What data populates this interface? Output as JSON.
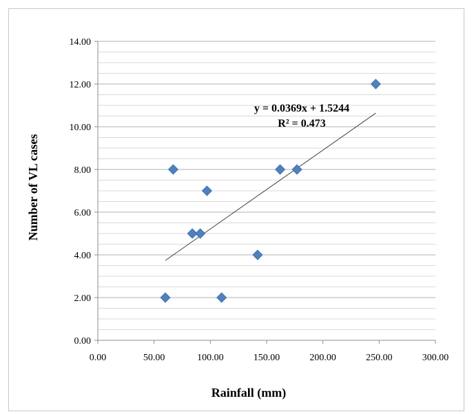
{
  "chart_data": {
    "type": "scatter",
    "xlabel": "Rainfall (mm)",
    "ylabel": "Number of VL cases",
    "xlim": [
      0,
      300
    ],
    "ylim": [
      0,
      14
    ],
    "x_ticks": [
      "0.00",
      "50.00",
      "100.00",
      "150.00",
      "200.00",
      "250.00",
      "300.00"
    ],
    "y_ticks": [
      "0.00",
      "2.00",
      "4.00",
      "6.00",
      "8.00",
      "10.00",
      "12.00",
      "14.00"
    ],
    "grid": true,
    "marker_color": "#4f81bd",
    "trendline_color": "#404040",
    "points": [
      {
        "x": 60,
        "y": 2
      },
      {
        "x": 67,
        "y": 8
      },
      {
        "x": 84,
        "y": 5
      },
      {
        "x": 91,
        "y": 5
      },
      {
        "x": 97,
        "y": 7
      },
      {
        "x": 110,
        "y": 2
      },
      {
        "x": 142,
        "y": 4
      },
      {
        "x": 162,
        "y": 8
      },
      {
        "x": 177,
        "y": 8
      },
      {
        "x": 247,
        "y": 12
      }
    ],
    "trendline": {
      "slope": 0.0369,
      "intercept": 1.5244,
      "x_range": [
        60,
        247
      ],
      "equation": "y = 0.0369x + 1.5244",
      "r_squared": "R² = 0.473"
    }
  }
}
